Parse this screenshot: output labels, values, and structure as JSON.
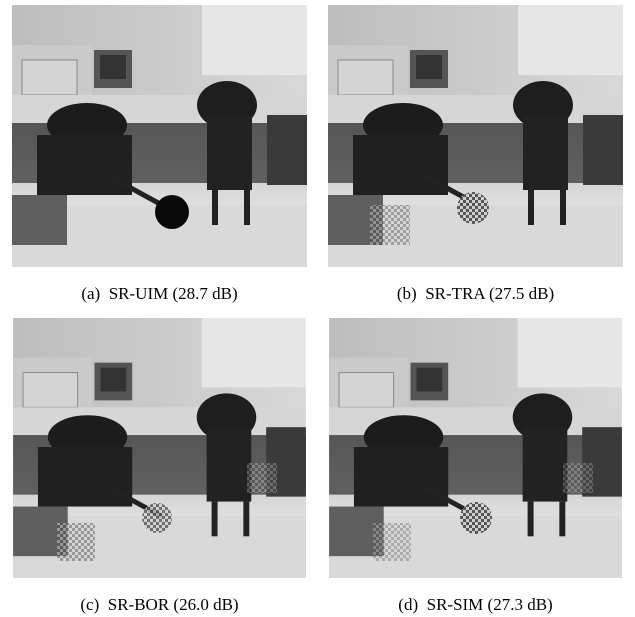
{
  "figure": {
    "panels": [
      {
        "label": "(a)",
        "caption": "SR-UIM (28.7 dB)"
      },
      {
        "label": "(b)",
        "caption": "SR-TRA (27.5 dB)"
      },
      {
        "label": "(c)",
        "caption": "SR-BOR (26.0 dB)"
      },
      {
        "label": "(d)",
        "caption": "SR-SIM (27.3 dB)"
      }
    ]
  }
}
